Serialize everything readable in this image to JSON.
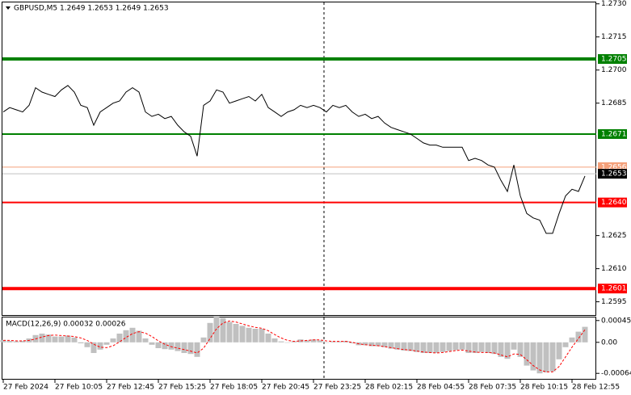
{
  "chart_data": [
    {
      "type": "line",
      "title": "GBPUSD,M5  1.2649 1.2653 1.2649 1.2653",
      "color": "#000000",
      "xlim": [
        -0.25,
        91.75
      ],
      "ylim": [
        1.2589,
        1.2731
      ],
      "yticks": [
        {
          "value": 1.273,
          "label": "1.2730"
        },
        1.2715,
        {
          "value": 1.27,
          "label": "1.2700"
        },
        1.2685,
        1.2625,
        {
          "value": 1.261,
          "label": "1.2610"
        },
        1.2595
      ],
      "xticks": [
        {
          "value": 0,
          "label": "27 Feb 2024"
        },
        {
          "value": 8,
          "label": "27 Feb 10:05"
        },
        {
          "value": 16,
          "label": "27 Feb 12:45"
        },
        {
          "value": 24,
          "label": "27 Feb 15:25"
        },
        {
          "value": 32,
          "label": "27 Feb 18:05"
        },
        {
          "value": 40,
          "label": "27 Feb 20:45"
        },
        {
          "value": 48,
          "label": "27 Feb 23:25"
        },
        {
          "value": 56,
          "label": "28 Feb 02:15"
        },
        {
          "value": 64,
          "label": "28 Feb 04:55"
        },
        {
          "value": 72,
          "label": "28 Feb 07:35"
        },
        {
          "value": 80,
          "label": "28 Feb 10:15"
        },
        {
          "value": 88,
          "label": "28 Feb 12:55"
        }
      ],
      "levels": [
        {
          "value": 1.2705,
          "color": "#008000"
        },
        {
          "value": 1.2671,
          "color": "#008000"
        },
        {
          "value": 1.2656,
          "color": "#f4a07a"
        },
        {
          "value": 1.264,
          "label": "1.2640",
          "color": "#ff0000"
        },
        {
          "value": 1.2601,
          "color": "#ff0000"
        }
      ],
      "current_price": 1.2653,
      "values": [
        1.2681,
        1.2683,
        1.2682,
        1.2681,
        1.2684,
        1.2692,
        1.269,
        1.2689,
        1.2688,
        1.2691,
        1.2693,
        1.269,
        1.2684,
        1.2683,
        1.2675,
        1.2681,
        1.2683,
        1.2685,
        1.2686,
        1.269,
        1.2692,
        1.269,
        1.2681,
        1.2679,
        1.268,
        1.2678,
        1.2679,
        1.2675,
        1.2672,
        1.267,
        1.2661,
        1.2684,
        1.2686,
        1.2691,
        1.269,
        1.2685,
        1.2686,
        1.2687,
        1.2688,
        1.2686,
        1.2689,
        1.2683,
        1.2681,
        1.2679,
        1.2681,
        1.2682,
        1.2684,
        1.2683,
        1.2684,
        1.2683,
        1.2681,
        1.2684,
        1.2683,
        1.2684,
        1.2681,
        1.2679,
        1.268,
        1.2678,
        1.2679,
        1.2676,
        1.2674,
        1.2673,
        1.2672,
        1.2671,
        1.2669,
        1.2667,
        1.2666,
        1.2666,
        1.2665,
        1.2665,
        1.2665,
        1.2665,
        1.2659,
        1.266,
        1.2659,
        1.2657,
        1.2656,
        1.265,
        1.2645,
        1.2657,
        1.2643,
        1.2635,
        1.2633,
        1.2632,
        1.2626,
        1.2626,
        1.2635,
        1.2643,
        1.2646,
        1.2645,
        1.2652
      ]
    },
    {
      "type": "bar",
      "title": "MACD(12,26,9) 0.00032 0.00026",
      "xlim": [
        -0.25,
        91.75
      ],
      "ylim": [
        -0.00077,
        0.00053
      ],
      "yticks": [
        0.00045,
        {
          "value": 0,
          "label": "0.00"
        },
        -0.00064
      ],
      "series": [
        {
          "color": "#c0c0c0",
          "values": [
            5e-05,
            3e-05,
            2e-05,
            3e-05,
            8e-05,
            0.00015,
            0.00018,
            0.00016,
            0.00012,
            0.00012,
            0.00014,
            0.0001,
            -2e-05,
            -0.0001,
            -0.00022,
            -0.00015,
            -5e-05,
            8e-05,
            0.00018,
            0.00025,
            0.0003,
            0.00024,
            8e-05,
            -5e-05,
            -0.00012,
            -0.00014,
            -0.00015,
            -0.00018,
            -0.00022,
            -0.00024,
            -0.0003,
            0.0001,
            0.0004,
            0.00055,
            0.0005,
            0.00042,
            0.00038,
            0.00034,
            0.0003,
            0.00028,
            0.00028,
            0.00018,
            8e-05,
            2e-05,
            0,
            2e-05,
            6e-05,
            4e-05,
            6e-05,
            4e-05,
            0,
            2e-05,
            2e-05,
            3e-05,
            -2e-05,
            -6e-05,
            -6e-05,
            -8e-05,
            -8e-05,
            -0.0001,
            -0.00013,
            -0.00015,
            -0.00017,
            -0.00018,
            -0.0002,
            -0.00022,
            -0.00022,
            -0.00022,
            -0.0002,
            -0.00018,
            -0.00016,
            -0.00015,
            -0.00022,
            -0.00022,
            -0.0002,
            -0.00022,
            -0.00024,
            -0.0003,
            -0.00034,
            -0.00015,
            -0.0003,
            -0.00048,
            -0.00058,
            -0.00064,
            -0.00062,
            -0.0006,
            -0.00035,
            -0.0001,
            0.0001,
            0.00022,
            0.00032
          ]
        },
        {
          "type": "line",
          "color": "#ff0000",
          "values": [
            4e-05,
            4e-05,
            3e-05,
            3e-05,
            4e-05,
            7e-05,
            0.00011,
            0.00014,
            0.00015,
            0.00014,
            0.00013,
            0.00012,
            9e-05,
            4e-05,
            -4e-05,
            -0.0001,
            -0.00011,
            -7e-05,
            1e-05,
            0.0001,
            0.00018,
            0.00022,
            0.00019,
            0.00012,
            3e-05,
            -4e-05,
            -9e-05,
            -0.00012,
            -0.00015,
            -0.00018,
            -0.00022,
            -0.00012,
            8e-05,
            0.00028,
            0.0004,
            0.00044,
            0.00042,
            0.00038,
            0.00034,
            0.00031,
            0.00029,
            0.00024,
            0.00016,
            9e-05,
            4e-05,
            2e-05,
            3e-05,
            4e-05,
            5e-05,
            5e-05,
            3e-05,
            2e-05,
            2e-05,
            2e-05,
            0,
            -3e-05,
            -5e-05,
            -6e-05,
            -7e-05,
            -9e-05,
            -0.00011,
            -0.00013,
            -0.00015,
            -0.00016,
            -0.00018,
            -0.0002,
            -0.00021,
            -0.00022,
            -0.00021,
            -0.00019,
            -0.00017,
            -0.00016,
            -0.00018,
            -0.0002,
            -0.00021,
            -0.00021,
            -0.00022,
            -0.00026,
            -0.0003,
            -0.00024,
            -0.00025,
            -0.00036,
            -0.00048,
            -0.00057,
            -0.00061,
            -0.00061,
            -0.0005,
            -0.0003,
            -0.0001,
            8e-05,
            0.00026
          ]
        }
      ]
    }
  ]
}
